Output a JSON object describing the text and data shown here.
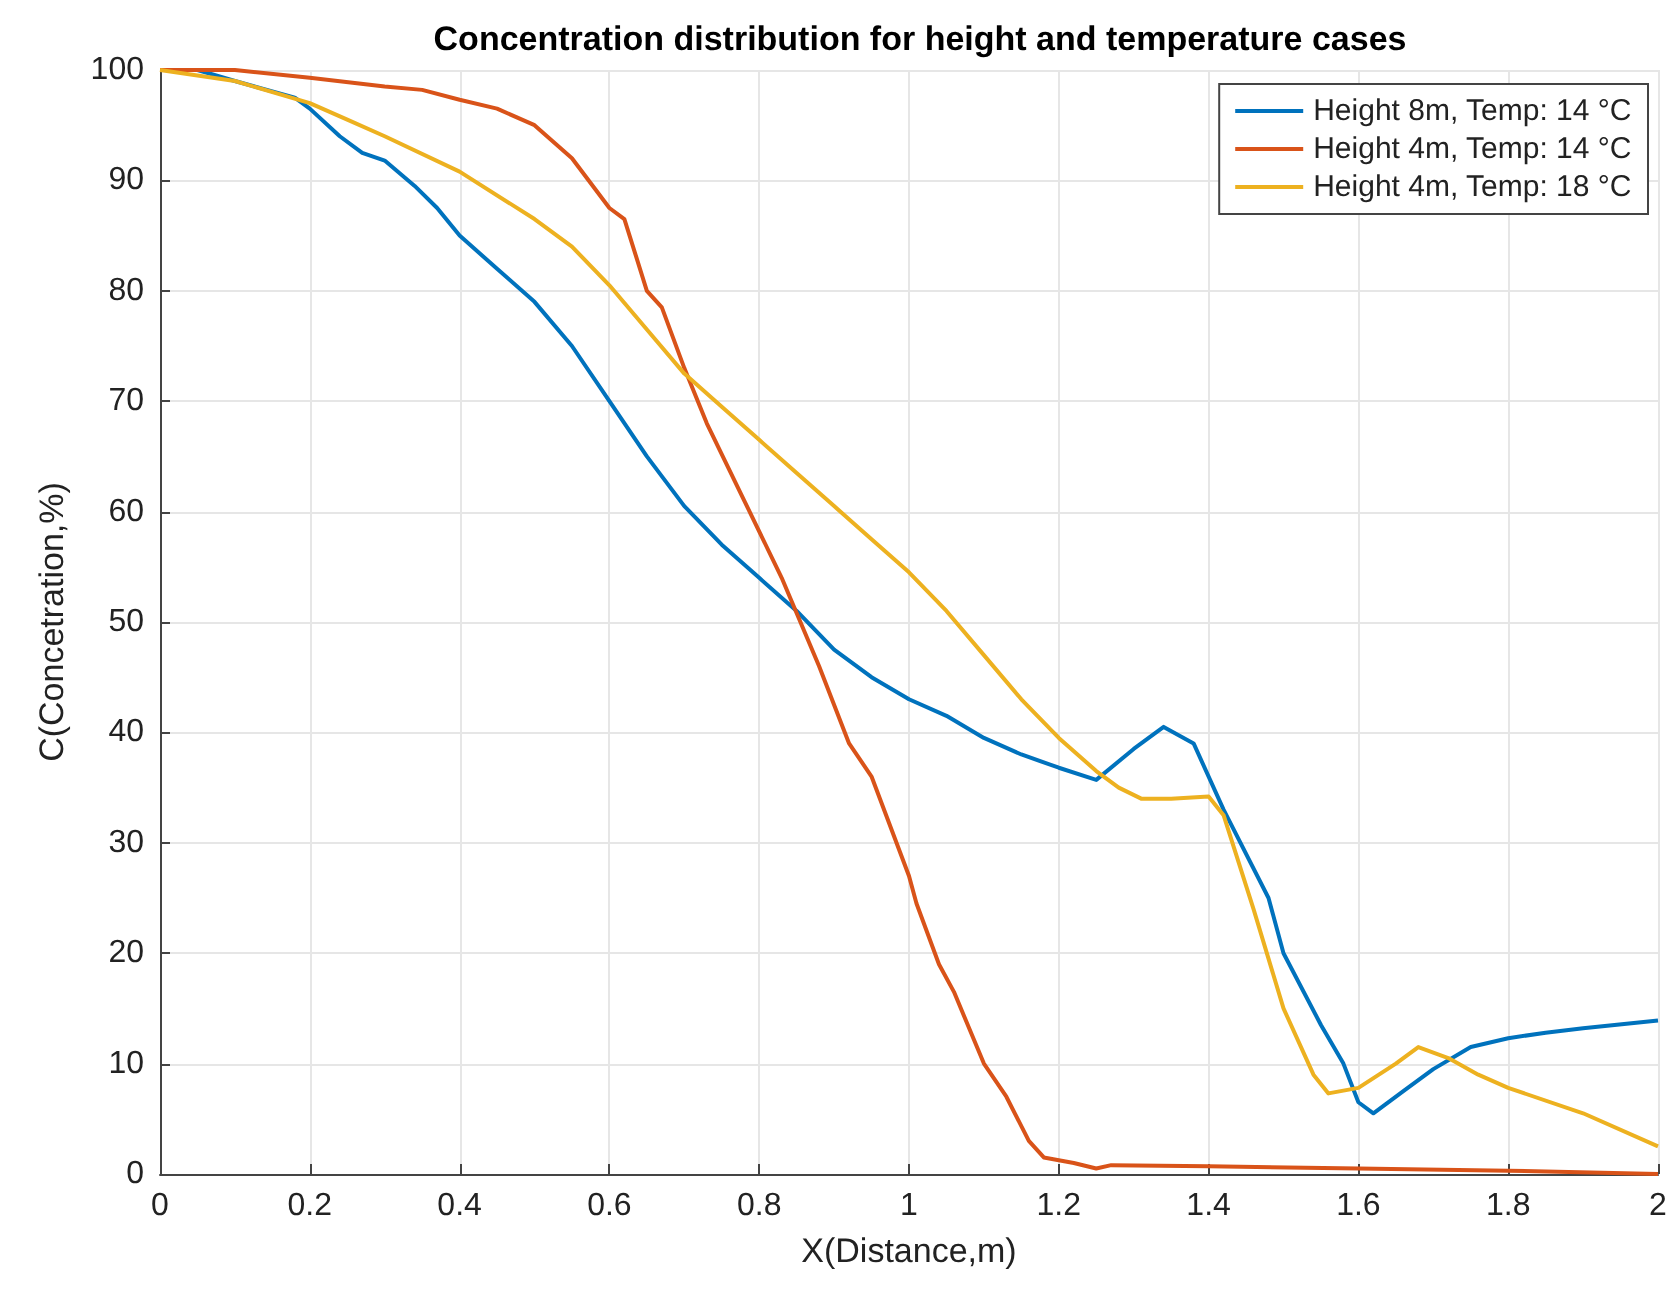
{
  "chart_data": {
    "type": "line",
    "title": "Concentration distribution for height and temperature cases",
    "xlabel": "X(Distance,m)",
    "ylabel": "C(Concetration,%)",
    "xlim": [
      0,
      2
    ],
    "xticks": [
      0,
      0.2,
      0.4,
      0.6,
      0.8,
      1,
      1.2,
      1.4,
      1.6,
      1.8,
      2
    ],
    "ylim": [
      0,
      100
    ],
    "yticks": [
      0,
      10,
      20,
      30,
      40,
      50,
      60,
      70,
      80,
      90,
      100
    ],
    "grid": true,
    "legend": "top right",
    "marker": "none",
    "line_style": "solid",
    "series": [
      {
        "name": "Height 8m, Temp: 14 °C",
        "color": "#0072bd",
        "x": [
          0,
          0.05,
          0.1,
          0.18,
          0.2,
          0.24,
          0.27,
          0.3,
          0.34,
          0.37,
          0.4,
          0.45,
          0.5,
          0.55,
          0.6,
          0.65,
          0.7,
          0.75,
          0.8,
          0.85,
          0.9,
          0.95,
          1.0,
          1.05,
          1.1,
          1.15,
          1.2,
          1.25,
          1.3,
          1.34,
          1.38,
          1.42,
          1.48,
          1.5,
          1.55,
          1.58,
          1.6,
          1.62,
          1.66,
          1.7,
          1.75,
          1.8,
          1.85,
          1.9,
          2.0
        ],
        "values": [
          100,
          100,
          99,
          97.5,
          96.5,
          94,
          92.5,
          91.8,
          89.5,
          87.5,
          85,
          82,
          79,
          75,
          70,
          65,
          60.5,
          57,
          54,
          51,
          47.5,
          45,
          43,
          41.5,
          39.5,
          38,
          36.8,
          35.7,
          38.5,
          40.5,
          39,
          33,
          25,
          20,
          13.5,
          10,
          6.5,
          5.5,
          7.5,
          9.5,
          11.5,
          12.3,
          12.8,
          13.2,
          13.9
        ]
      },
      {
        "name": "Height 4m, Temp: 14 °C",
        "color": "#d95319",
        "x": [
          0,
          0.1,
          0.2,
          0.3,
          0.35,
          0.4,
          0.45,
          0.5,
          0.55,
          0.6,
          0.62,
          0.65,
          0.67,
          0.7,
          0.73,
          0.78,
          0.83,
          0.88,
          0.92,
          0.95,
          1.0,
          1.01,
          1.04,
          1.06,
          1.1,
          1.13,
          1.16,
          1.18,
          1.22,
          1.25,
          1.27,
          1.4,
          1.6,
          1.8,
          2.0
        ],
        "values": [
          100,
          100,
          99.3,
          98.5,
          98.2,
          97.3,
          96.5,
          95,
          92,
          87.5,
          86.5,
          80,
          78.5,
          73,
          68,
          61,
          54,
          46,
          39,
          36,
          27,
          24.5,
          19,
          16.5,
          10,
          7,
          3,
          1.5,
          1,
          0.5,
          0.8,
          0.7,
          0.5,
          0.3,
          0
        ]
      },
      {
        "name": "Height 4m, Temp: 18 °C",
        "color": "#edb120",
        "x": [
          0,
          0.1,
          0.2,
          0.25,
          0.3,
          0.4,
          0.5,
          0.55,
          0.6,
          0.65,
          0.7,
          0.75,
          0.8,
          0.85,
          0.9,
          0.95,
          1.0,
          1.05,
          1.1,
          1.15,
          1.2,
          1.25,
          1.28,
          1.31,
          1.35,
          1.4,
          1.42,
          1.46,
          1.5,
          1.54,
          1.56,
          1.6,
          1.65,
          1.68,
          1.72,
          1.76,
          1.8,
          1.9,
          2.0
        ],
        "values": [
          100,
          99,
          97,
          95.5,
          94,
          90.8,
          86.5,
          84,
          80.5,
          76.5,
          72.5,
          69.5,
          66.5,
          63.5,
          60.5,
          57.5,
          54.5,
          51,
          47,
          43,
          39.5,
          36.5,
          35,
          34,
          34,
          34.2,
          32.5,
          24,
          15,
          9,
          7.3,
          7.8,
          10,
          11.5,
          10.5,
          9,
          7.8,
          5.5,
          2.5
        ]
      }
    ]
  }
}
